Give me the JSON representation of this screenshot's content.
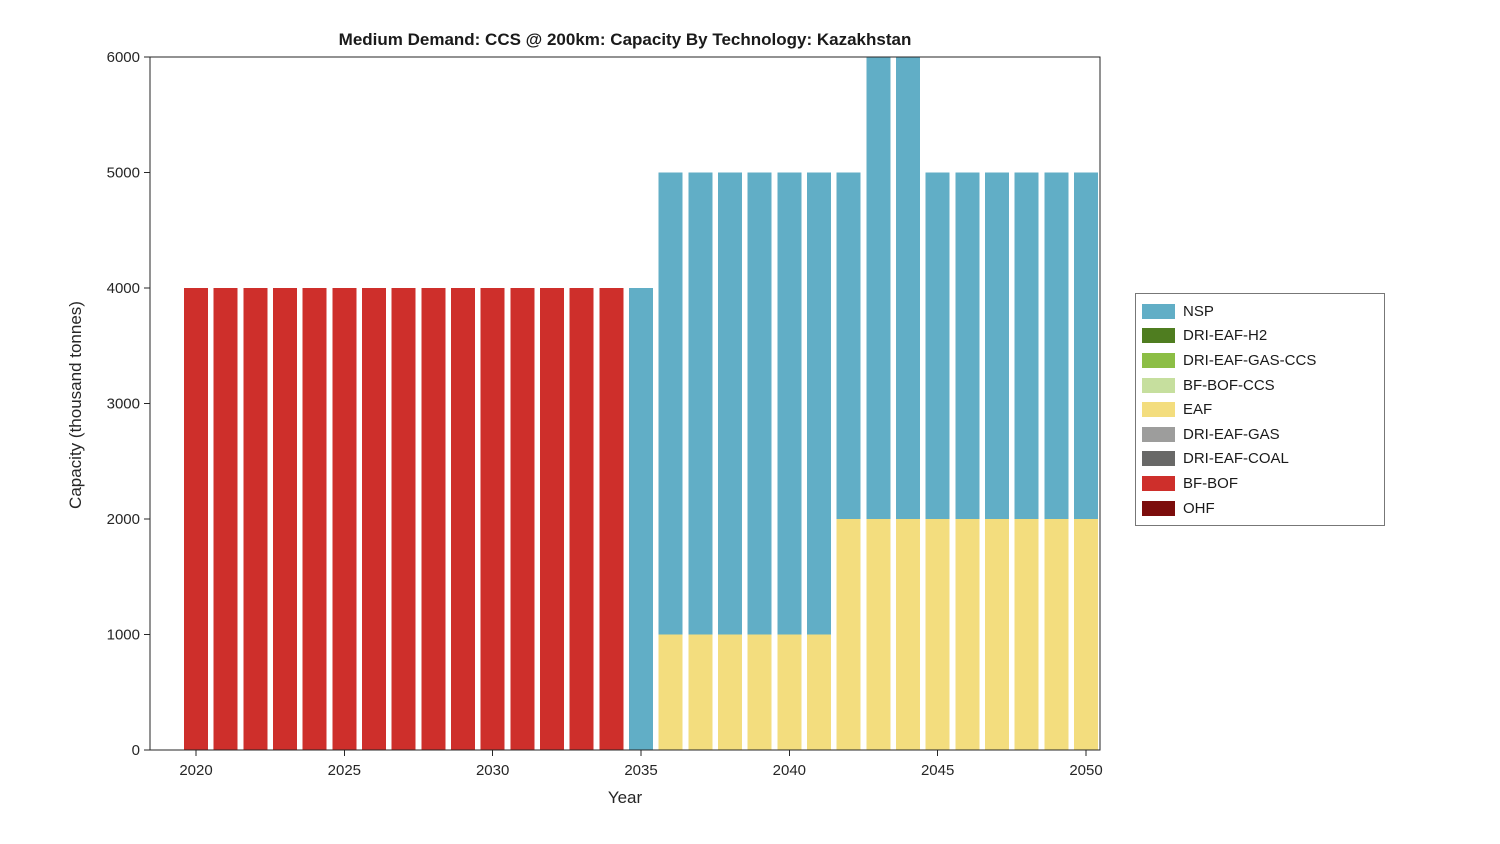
{
  "chart_data": {
    "type": "bar",
    "stacked": true,
    "title": "Medium Demand: CCS @ 200km: Capacity By Technology: Kazakhstan",
    "xlabel": "Year",
    "ylabel": "Capacity (thousand tonnes)",
    "x": [
      2020,
      2021,
      2022,
      2023,
      2024,
      2025,
      2026,
      2027,
      2028,
      2029,
      2030,
      2031,
      2032,
      2033,
      2034,
      2035,
      2036,
      2037,
      2038,
      2039,
      2040,
      2041,
      2042,
      2043,
      2044,
      2045,
      2046,
      2047,
      2048,
      2049,
      2050
    ],
    "series": [
      {
        "name": "NSP",
        "color": "#61AEC6",
        "values": [
          0,
          0,
          0,
          0,
          0,
          0,
          0,
          0,
          0,
          0,
          0,
          0,
          0,
          0,
          0,
          4000,
          4000,
          4000,
          4000,
          4000,
          4000,
          4000,
          3000,
          4500,
          4500,
          3000,
          3000,
          3000,
          3000,
          3000,
          3000
        ]
      },
      {
        "name": "DRI-EAF-H2",
        "color": "#4F7D20",
        "values": [
          0,
          0,
          0,
          0,
          0,
          0,
          0,
          0,
          0,
          0,
          0,
          0,
          0,
          0,
          0,
          0,
          0,
          0,
          0,
          0,
          0,
          0,
          0,
          0,
          0,
          0,
          0,
          0,
          0,
          0,
          0
        ]
      },
      {
        "name": "DRI-EAF-GAS-CCS",
        "color": "#8CBE45",
        "values": [
          0,
          0,
          0,
          0,
          0,
          0,
          0,
          0,
          0,
          0,
          0,
          0,
          0,
          0,
          0,
          0,
          0,
          0,
          0,
          0,
          0,
          0,
          0,
          0,
          0,
          0,
          0,
          0,
          0,
          0,
          0
        ]
      },
      {
        "name": "BF-BOF-CCS",
        "color": "#C6DF9E",
        "values": [
          0,
          0,
          0,
          0,
          0,
          0,
          0,
          0,
          0,
          0,
          0,
          0,
          0,
          0,
          0,
          0,
          0,
          0,
          0,
          0,
          0,
          0,
          0,
          0,
          0,
          0,
          0,
          0,
          0,
          0,
          0
        ]
      },
      {
        "name": "EAF",
        "color": "#F3DD7E",
        "values": [
          0,
          0,
          0,
          0,
          0,
          0,
          0,
          0,
          0,
          0,
          0,
          0,
          0,
          0,
          0,
          0,
          1000,
          1000,
          1000,
          1000,
          1000,
          1000,
          2000,
          2000,
          2000,
          2000,
          2000,
          2000,
          2000,
          2000,
          2000
        ]
      },
      {
        "name": "DRI-EAF-GAS",
        "color": "#9D9D9C",
        "values": [
          0,
          0,
          0,
          0,
          0,
          0,
          0,
          0,
          0,
          0,
          0,
          0,
          0,
          0,
          0,
          0,
          0,
          0,
          0,
          0,
          0,
          0,
          0,
          0,
          0,
          0,
          0,
          0,
          0,
          0,
          0
        ]
      },
      {
        "name": "DRI-EAF-COAL",
        "color": "#686867",
        "values": [
          0,
          0,
          0,
          0,
          0,
          0,
          0,
          0,
          0,
          0,
          0,
          0,
          0,
          0,
          0,
          0,
          0,
          0,
          0,
          0,
          0,
          0,
          0,
          0,
          0,
          0,
          0,
          0,
          0,
          0,
          0
        ]
      },
      {
        "name": "BF-BOF",
        "color": "#CE2F2B",
        "values": [
          4000,
          4000,
          4000,
          4000,
          4000,
          4000,
          4000,
          4000,
          4000,
          4000,
          4000,
          4000,
          4000,
          4000,
          4000,
          0,
          0,
          0,
          0,
          0,
          0,
          0,
          0,
          0,
          0,
          0,
          0,
          0,
          0,
          0,
          0
        ]
      },
      {
        "name": "OHF",
        "color": "#7C0D0C",
        "values": [
          0,
          0,
          0,
          0,
          0,
          0,
          0,
          0,
          0,
          0,
          0,
          0,
          0,
          0,
          0,
          0,
          0,
          0,
          0,
          0,
          0,
          0,
          0,
          0,
          0,
          0,
          0,
          0,
          0,
          0,
          0
        ]
      }
    ],
    "ylim": [
      0,
      6000
    ],
    "yticks": [
      0,
      1000,
      2000,
      3000,
      4000,
      5000,
      6000
    ],
    "xticks": [
      2020,
      2025,
      2030,
      2035,
      2040,
      2045,
      2050
    ],
    "legend_position": "right",
    "note": "Bars for 2043 and 2044 exceed the y-axis maximum and are visually clipped at 6000"
  }
}
